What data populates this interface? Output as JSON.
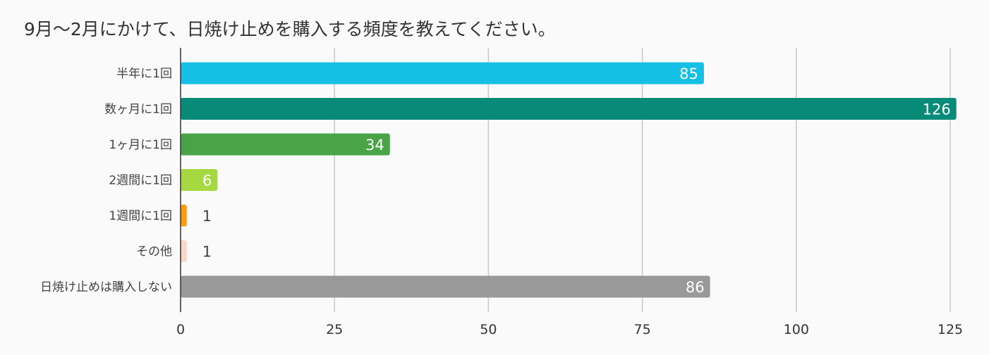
{
  "chart_data": {
    "type": "bar",
    "orientation": "horizontal",
    "title": "9月〜2月にかけて、日焼け止めを購入する頻度を教えてください。",
    "categories": [
      "半年に1回",
      "数ヶ月に1回",
      "1ヶ月に1回",
      "2週間に1回",
      "1週間に1回",
      "その他",
      "日焼け止めは購入しない"
    ],
    "values": [
      85,
      126,
      34,
      6,
      1,
      1,
      86
    ],
    "colors": [
      "#14c0e6",
      "#078a78",
      "#48a447",
      "#a6d840",
      "#ff9a0a",
      "#ffd6c4",
      "#999999"
    ],
    "data_labels": [
      "85",
      "126",
      "34",
      "6",
      "1",
      "1",
      "86"
    ],
    "xlim": [
      0,
      125
    ],
    "xticks": [
      0,
      25,
      50,
      75,
      100,
      125
    ],
    "xtick_labels": [
      "0",
      "25",
      "50",
      "75",
      "100",
      "125"
    ],
    "grid": true,
    "legend": "none"
  }
}
